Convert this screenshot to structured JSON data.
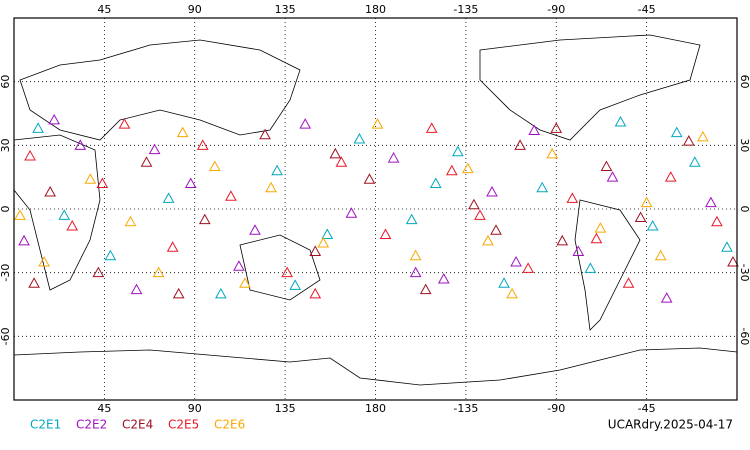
{
  "chart_data": {
    "type": "scatter-map",
    "xlim": [
      0,
      360
    ],
    "ylim": [
      -90,
      90
    ],
    "xticks": [
      45,
      90,
      135,
      180,
      {
        "value": 225,
        "label": "-135"
      },
      {
        "value": 270,
        "label": "-90"
      },
      {
        "value": 315,
        "label": "-45"
      }
    ],
    "yticks": [
      -60,
      -30,
      0,
      30,
      60
    ],
    "grid": true,
    "annotation": "UCARdry.2025-04-17",
    "series": [
      {
        "name": "C2E1",
        "color": "#00a8c0",
        "x": [
          12,
          48,
          77,
          103,
          131,
          156,
          172,
          198,
          221,
          244,
          263,
          287,
          302,
          318,
          339,
          355,
          25,
          140,
          210,
          330
        ],
        "y": [
          38,
          -22,
          5,
          -40,
          18,
          -12,
          33,
          -5,
          27,
          -35,
          10,
          -28,
          41,
          -8,
          22,
          -18,
          -3,
          -36,
          12,
          36
        ]
      },
      {
        "name": "C2E2",
        "color": "#a010c0",
        "x": [
          5,
          33,
          61,
          88,
          112,
          145,
          168,
          189,
          214,
          238,
          259,
          281,
          298,
          325,
          347,
          70,
          120,
          250,
          20,
          200
        ],
        "y": [
          -15,
          30,
          -38,
          12,
          -27,
          40,
          -2,
          24,
          -33,
          8,
          37,
          -20,
          15,
          -42,
          3,
          28,
          -10,
          -25,
          42,
          -30
        ]
      },
      {
        "name": "C2E4",
        "color": "#a01020",
        "x": [
          18,
          42,
          66,
          95,
          125,
          150,
          177,
          205,
          229,
          252,
          273,
          295,
          312,
          336,
          358,
          82,
          160,
          240,
          10,
          270
        ],
        "y": [
          8,
          -30,
          22,
          -5,
          35,
          -20,
          14,
          -38,
          2,
          30,
          -15,
          20,
          -4,
          32,
          -25,
          -40,
          26,
          -10,
          -35,
          38
        ]
      },
      {
        "name": "C2E5",
        "color": "#e81828",
        "x": [
          8,
          29,
          55,
          79,
          108,
          136,
          163,
          185,
          208,
          232,
          256,
          278,
          306,
          327,
          350,
          94,
          150,
          218,
          44,
          290
        ],
        "y": [
          25,
          -8,
          40,
          -18,
          6,
          -30,
          22,
          -12,
          38,
          -3,
          -28,
          5,
          -35,
          15,
          -6,
          30,
          -40,
          18,
          12,
          -14
        ]
      },
      {
        "name": "C2E6",
        "color": "#f8a800",
        "x": [
          15,
          38,
          58,
          84,
          115,
          128,
          154,
          181,
          200,
          226,
          248,
          268,
          292,
          315,
          343,
          72,
          100,
          236,
          3,
          322
        ],
        "y": [
          -25,
          14,
          -6,
          36,
          -35,
          10,
          -16,
          40,
          -22,
          19,
          -40,
          26,
          -9,
          3,
          34,
          -30,
          20,
          -15,
          -3,
          -22
        ]
      }
    ]
  }
}
